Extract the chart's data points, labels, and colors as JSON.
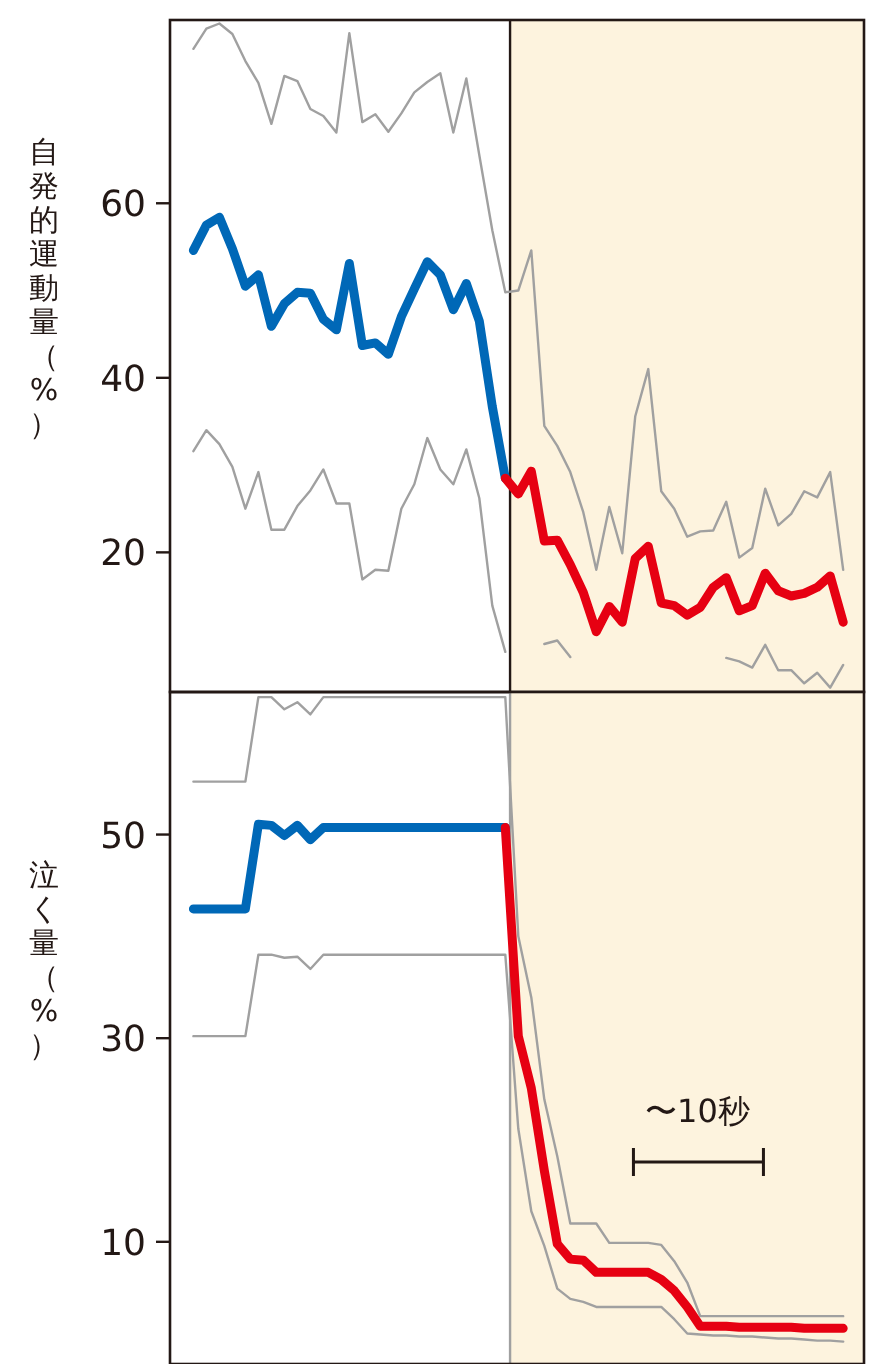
{
  "chart_data": [
    {
      "type": "line",
      "ylabel": "自発的運動量（%）",
      "ylim": [
        4,
        81
      ],
      "yticks": [
        20,
        40,
        60
      ],
      "tick_labels": "y",
      "marker": "none",
      "line_style": "solid",
      "categories": [
        null,
        null,
        null,
        null,
        null,
        null,
        null,
        null,
        null,
        null,
        null,
        null,
        null,
        null,
        null,
        null,
        null,
        null,
        null,
        null,
        null,
        null,
        null,
        null,
        null,
        null,
        null,
        null,
        null,
        null,
        null,
        null,
        null,
        null,
        null,
        null,
        null,
        null,
        null,
        null,
        null,
        null,
        null,
        null,
        null,
        null,
        null,
        null,
        null,
        null,
        null
      ],
      "series": [
        {
          "color": "#a0a0a0",
          "values": [
            77.7,
            80.0,
            80.6,
            79.4,
            76.3,
            73.8,
            69.1,
            74.6,
            74.0,
            70.8,
            70.0,
            68.1,
            79.5,
            69.3,
            70.2,
            68.2,
            70.3,
            72.7,
            73.9,
            74.9,
            68.1,
            74.3,
            65.5,
            56.9,
            49.8,
            50.0,
            54.6,
            34.5,
            32.2,
            29.2,
            24.6,
            18.0,
            25.2,
            19.9,
            35.6,
            41.0,
            27.0,
            25.0,
            21.8,
            22.4,
            22.5,
            25.8,
            19.4,
            20.5,
            27.3,
            23.1,
            24.4,
            27.0,
            26.3,
            29.2,
            18.0
          ]
        },
        {
          "color": "#a0a0a0",
          "values": [
            31.6,
            34.0,
            32.4,
            29.8,
            25.0,
            29.2,
            22.6,
            22.6,
            25.3,
            27.1,
            29.5,
            25.6,
            25.6,
            16.9,
            18.0,
            17.9,
            25.0,
            27.8,
            33.1,
            29.5,
            27.8,
            31.8,
            26.2,
            13.9,
            8.6,
            null,
            null,
            9.5,
            9.9,
            8.0,
            null,
            null,
            null,
            null,
            null,
            null,
            null,
            null,
            null,
            null,
            null,
            7.9,
            7.5,
            6.8,
            9.4,
            6.5,
            6.5,
            5.0,
            6.2,
            4.5,
            7.1
          ]
        },
        {
          "color": "#0068b7",
          "values": [
            54.6,
            57.5,
            58.4,
            54.8,
            50.5,
            51.8,
            45.9,
            48.5,
            49.8,
            49.7,
            46.7,
            45.5,
            53.1,
            43.7,
            44.0,
            42.7,
            47.0,
            50.2,
            53.3,
            51.8,
            47.8,
            50.8,
            46.5,
            36.7,
            28.5,
            null,
            null,
            null,
            null,
            null,
            null,
            null,
            null,
            null,
            null,
            null,
            null,
            null,
            null,
            null,
            null,
            null,
            null,
            null,
            null,
            null,
            null,
            null,
            null,
            null,
            null
          ]
        },
        {
          "color": "#e60012",
          "values": [
            null,
            null,
            null,
            null,
            null,
            null,
            null,
            null,
            null,
            null,
            null,
            null,
            null,
            null,
            null,
            null,
            null,
            null,
            null,
            null,
            null,
            null,
            null,
            null,
            28.5,
            26.7,
            29.3,
            21.3,
            21.4,
            18.6,
            15.4,
            10.9,
            13.8,
            12.0,
            19.3,
            20.7,
            14.2,
            13.9,
            12.8,
            13.7,
            16.0,
            17.1,
            13.3,
            13.9,
            17.6,
            15.6,
            15.0,
            15.3,
            16.0,
            17.3,
            12.0
          ]
        }
      ]
    },
    {
      "type": "line",
      "ylabel": "泣く量（%）",
      "ylim": [
        -2,
        64
      ],
      "yticks": [
        10,
        30,
        50
      ],
      "tick_labels": "y",
      "marker": "none",
      "line_style": "solid",
      "categories": [
        null,
        null,
        null,
        null,
        null,
        null,
        null,
        null,
        null,
        null,
        null,
        null,
        null,
        null,
        null,
        null,
        null,
        null,
        null,
        null,
        null,
        null,
        null,
        null,
        null,
        null,
        null,
        null,
        null,
        null,
        null,
        null,
        null,
        null,
        null,
        null,
        null,
        null,
        null,
        null,
        null,
        null,
        null,
        null,
        null,
        null,
        null,
        null,
        null,
        null,
        null
      ],
      "annotations": [
        "〜10秒"
      ],
      "series": [
        {
          "color": "#a0a0a0",
          "values": [
            55.2,
            55.2,
            55.2,
            55.2,
            55.2,
            63.5,
            63.5,
            62.3,
            63.0,
            61.8,
            63.5,
            63.5,
            63.5,
            63.5,
            63.5,
            63.5,
            63.5,
            63.5,
            63.5,
            63.5,
            63.5,
            63.5,
            63.5,
            63.5,
            63.5,
            40.0,
            34.0,
            24.0,
            18.4,
            11.8,
            11.8,
            11.8,
            9.9,
            9.9,
            9.9,
            9.9,
            9.7,
            8.1,
            6.0,
            2.7,
            2.7,
            2.7,
            2.7,
            2.7,
            2.7,
            2.7,
            2.7,
            2.7,
            2.7,
            2.7,
            2.7
          ]
        },
        {
          "color": "#a0a0a0",
          "values": [
            30.2,
            30.2,
            30.2,
            30.2,
            30.2,
            38.2,
            38.2,
            37.9,
            38.0,
            36.8,
            38.2,
            38.2,
            38.2,
            38.2,
            38.2,
            38.2,
            38.2,
            38.2,
            38.2,
            38.2,
            38.2,
            38.2,
            38.2,
            38.2,
            38.2,
            21.1,
            13.0,
            9.6,
            5.4,
            4.4,
            4.1,
            3.6,
            3.6,
            3.6,
            3.6,
            3.6,
            3.6,
            2.4,
            1.0,
            0.9,
            0.8,
            0.8,
            0.7,
            0.7,
            0.6,
            0.5,
            0.5,
            0.4,
            0.3,
            0.3,
            0.2
          ]
        },
        {
          "color": "#0068b7",
          "values": [
            42.7,
            42.7,
            42.7,
            42.7,
            42.7,
            51.0,
            50.9,
            49.9,
            50.9,
            49.5,
            50.7,
            50.7,
            50.7,
            50.7,
            50.7,
            50.7,
            50.7,
            50.7,
            50.7,
            50.7,
            50.7,
            50.7,
            50.7,
            50.7,
            50.7,
            null,
            null,
            null,
            null,
            null,
            null,
            null,
            null,
            null,
            null,
            null,
            null,
            null,
            null,
            null,
            null,
            null,
            null,
            null,
            null,
            null,
            null,
            null,
            null,
            null,
            null
          ]
        },
        {
          "color": "#e60012",
          "values": [
            null,
            null,
            null,
            null,
            null,
            null,
            null,
            null,
            null,
            null,
            null,
            null,
            null,
            null,
            null,
            null,
            null,
            null,
            null,
            null,
            null,
            null,
            null,
            null,
            50.7,
            30.2,
            25.1,
            17.0,
            9.8,
            8.3,
            8.2,
            7.0,
            7.0,
            7.0,
            7.0,
            7.0,
            6.3,
            5.2,
            3.6,
            1.7,
            1.7,
            1.7,
            1.6,
            1.6,
            1.6,
            1.6,
            1.6,
            1.5,
            1.5,
            1.5,
            1.5
          ]
        }
      ]
    }
  ]
}
